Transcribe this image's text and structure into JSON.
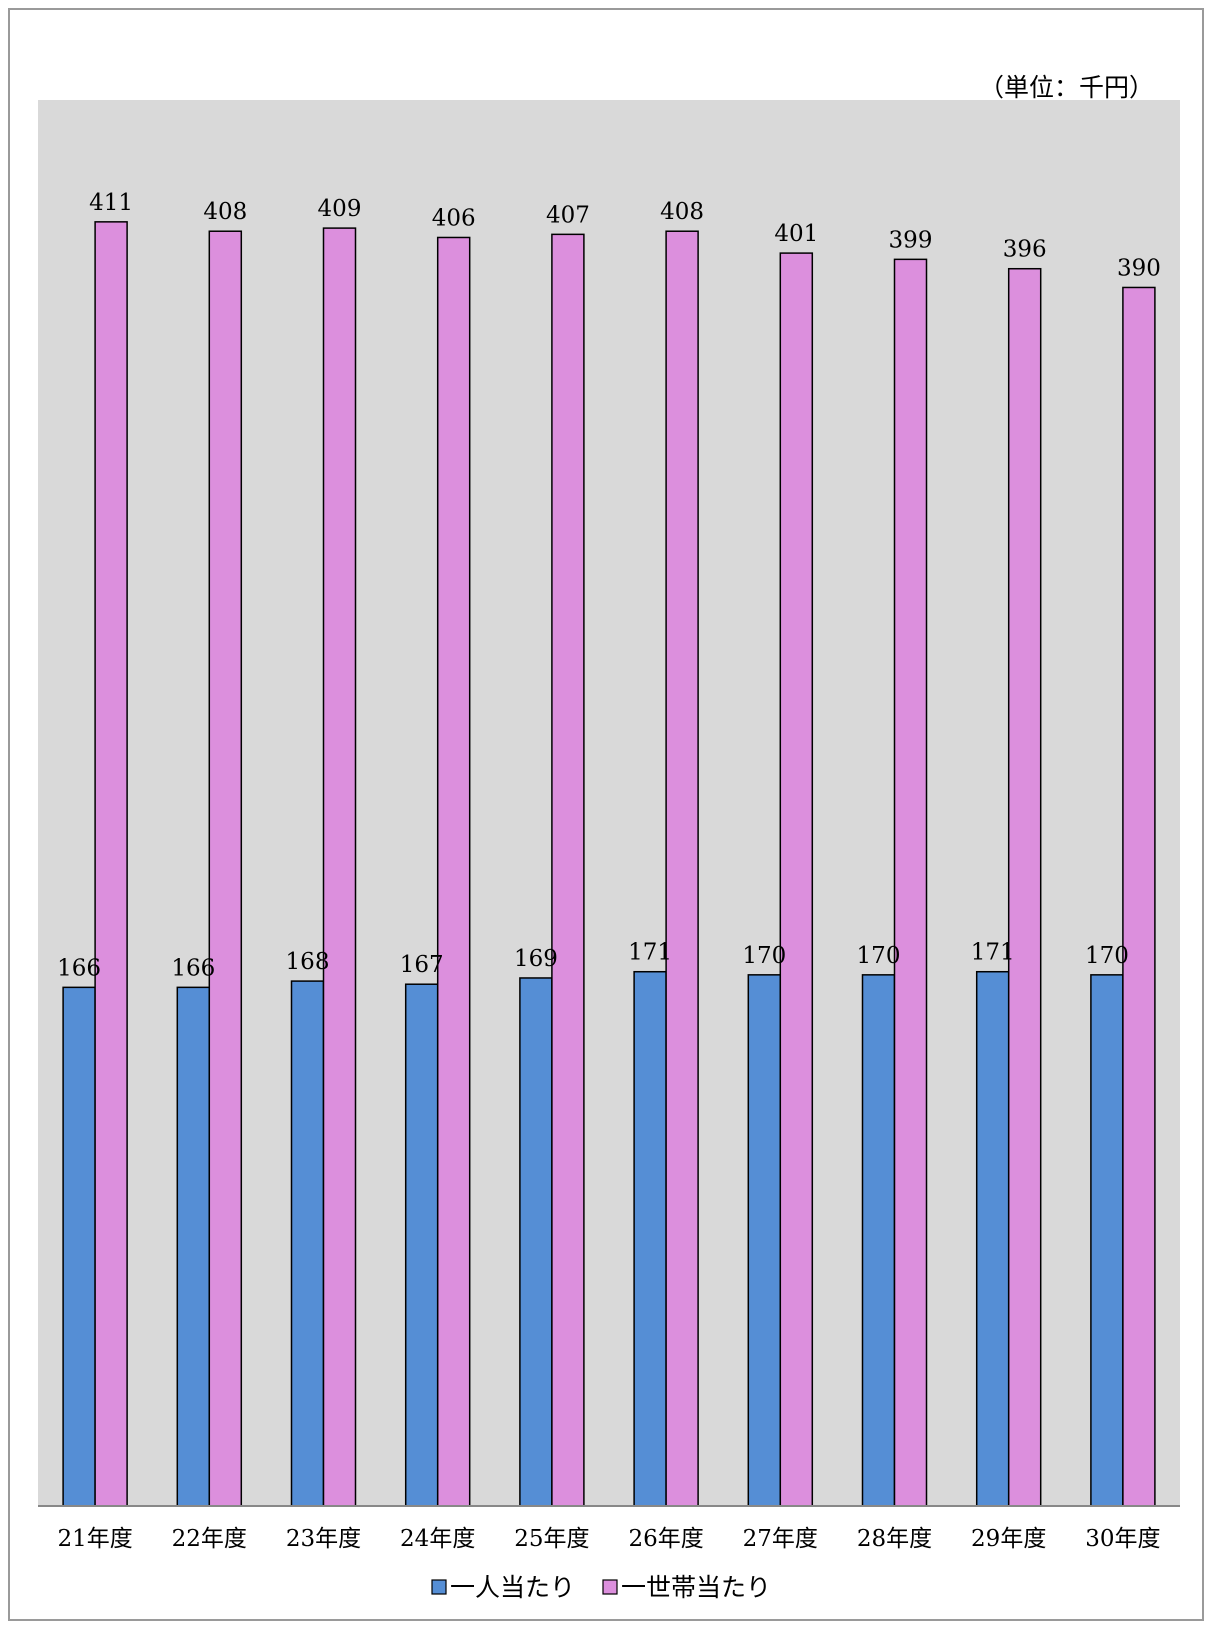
{
  "chart_data": {
    "type": "bar",
    "unit_note": "（単位：千円）",
    "categories": [
      "21年度",
      "22年度",
      "23年度",
      "24年度",
      "25年度",
      "26年度",
      "27年度",
      "28年度",
      "29年度",
      "30年度"
    ],
    "series": [
      {
        "name": "一人当たり",
        "color": "#558ed5",
        "values": [
          166,
          166,
          168,
          167,
          169,
          171,
          170,
          170,
          171,
          170
        ]
      },
      {
        "name": "一世帯当たり",
        "color": "#dc8fdd",
        "values": [
          411,
          408,
          409,
          406,
          407,
          408,
          401,
          399,
          396,
          390
        ]
      }
    ],
    "ylim": [
      0,
      450
    ],
    "plot_background": "#d9d9d9",
    "grid": false,
    "y_axis_visible": false,
    "data_labels": true,
    "legend_position": "bottom"
  }
}
